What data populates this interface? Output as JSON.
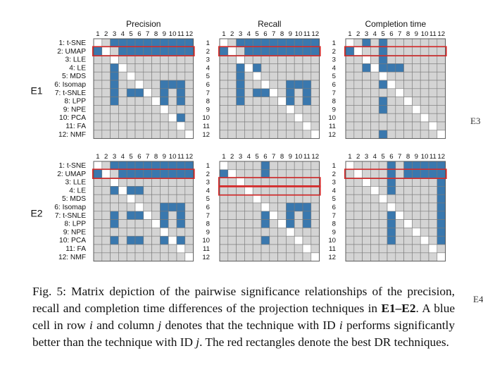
{
  "figure": {
    "panel_titles": [
      "Precision",
      "Recall",
      "Completion time"
    ],
    "column_ids": [
      "1",
      "2",
      "3",
      "4",
      "5",
      "6",
      "7",
      "8",
      "9",
      "10",
      "11",
      "12"
    ],
    "row_labels": [
      "1: t-SNE",
      "2: UMAP",
      "3: LLE",
      "4: LE",
      "5: MDS",
      "6: Isomap",
      "7: t-SNLE",
      "8: LPP",
      "9: NPE",
      "10: PCA",
      "11: FA",
      "12: NMF"
    ],
    "row_ids": [
      "1",
      "2",
      "3",
      "4",
      "5",
      "6",
      "7",
      "8",
      "9",
      "10",
      "11",
      "12"
    ],
    "experiments": [
      "E1",
      "E2"
    ],
    "edge_labels": [
      "E3",
      "E4"
    ],
    "colors": {
      "significant": "#3a78ae",
      "none": "#d4d4d4",
      "diagonal": "#ffffff",
      "best": "#d42a2a"
    },
    "matrices": {
      "E1": [
        {
          "best_rows": [
            2
          ],
          "rows": [
            "001111111111",
            "100111111111",
            "000000000000",
            "001000000000",
            "001000000000",
            "001000001110",
            "001011001010",
            "001000001010",
            "000000000000",
            "000000000010",
            "000000000000",
            "000000000000"
          ]
        },
        {
          "best_rows": [
            2
          ],
          "rows": [
            "001111111111",
            "100111111111",
            "000000000000",
            "001010000000",
            "001000000000",
            "001000001110",
            "001011001010",
            "001000001010",
            "000000000000",
            "000000000000",
            "000000000000",
            "000000000000"
          ]
        },
        {
          "best_rows": [
            2
          ],
          "rows": [
            "001010000000",
            "100010000000",
            "000010000000",
            "001011100000",
            "000010000000",
            "000010000000",
            "000000000000",
            "000010000000",
            "000010000000",
            "000000000000",
            "000000000000",
            "000010000000"
          ]
        }
      ],
      "E2": [
        {
          "best_rows": [
            2
          ],
          "rows": [
            "001111111111",
            "100111111111",
            "000000000000",
            "001111000000",
            "000000000000",
            "000000001110",
            "001011001010",
            "001000001010",
            "000000000000",
            "001011001010",
            "000000000000",
            "000000000000"
          ]
        },
        {
          "best_rows": [
            3,
            4
          ],
          "rows": [
            "000001000000",
            "100001000000",
            "000000000000",
            "000000000000",
            "000000000000",
            "000001001110",
            "000001001010",
            "000001001010",
            "000000000000",
            "000001000000",
            "000000000000",
            "000000000000"
          ]
        },
        {
          "best_rows": [
            2
          ],
          "rows": [
            "000001011111",
            "000001011111",
            "000001000001",
            "000001000001",
            "000000000001",
            "000001000001",
            "000001000001",
            "000001000001",
            "000001000001",
            "000001000001",
            "000000000000",
            "000000000000"
          ]
        }
      ]
    }
  },
  "caption": {
    "label": "Fig. 5:",
    "text_1": " Matrix depiction of the pairwise significance relationships of the precision, recall and completion time differences of the projection techniques in ",
    "bold": "E1–E2",
    "text_2": ". A blue cell in row ",
    "var_i": "i",
    "text_3": " and column ",
    "var_j": "j",
    "text_4": " denotes that the technique with ID ",
    "var_i2": "i",
    "text_5": " performs significantly better than the technique with ID ",
    "var_j2": "j",
    "text_6": ". The red rectangles denote the best DR techniques."
  }
}
